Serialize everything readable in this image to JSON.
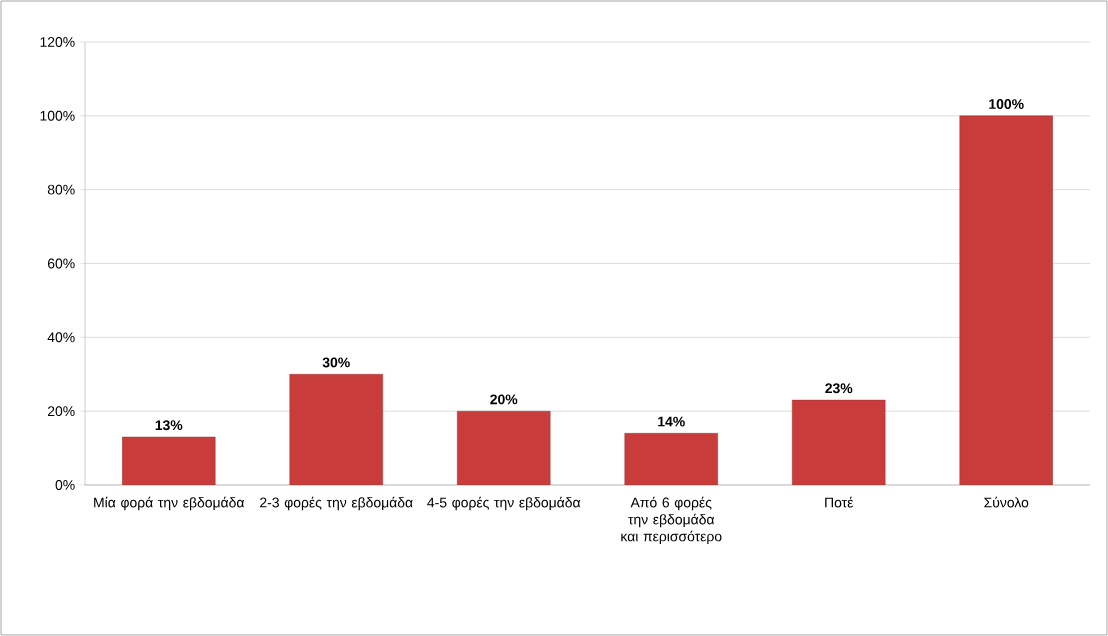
{
  "chart_data": {
    "type": "bar",
    "categories": [
      "Μία φορά την εβδομάδα",
      "2-3 φορές την εβδομάδα",
      "4-5 φορές την εβδομάδα",
      "Από 6 φορές την εβδομάδα και περισσότερο",
      "Ποτέ",
      "Σύνολο"
    ],
    "values": [
      13,
      30,
      20,
      14,
      23,
      100
    ],
    "value_labels": [
      "13%",
      "30%",
      "20%",
      "14%",
      "23%",
      "100%"
    ],
    "color": "#c83c3c",
    "ylim": [
      0,
      120
    ],
    "yticks": [
      {
        "value": 0,
        "label": "0%"
      },
      {
        "value": 20,
        "label": "20%"
      },
      {
        "value": 40,
        "label": "40%"
      },
      {
        "value": 60,
        "label": "60%"
      },
      {
        "value": 80,
        "label": "80%"
      },
      {
        "value": 100,
        "label": "100%"
      },
      {
        "value": 120,
        "label": "120%"
      }
    ],
    "grid": "y"
  }
}
